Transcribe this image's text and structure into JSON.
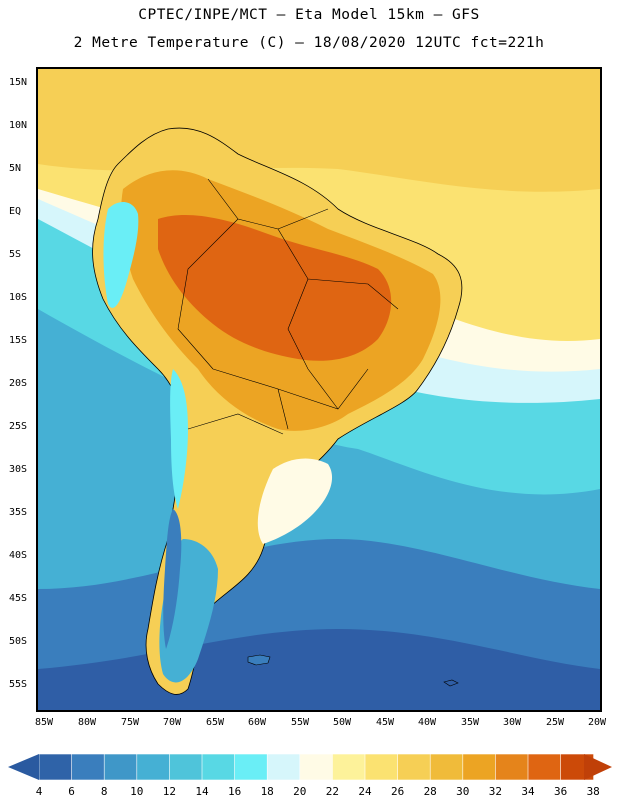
{
  "title_line1": "CPTEC/INPE/MCT –  Eta Model 15km – GFS",
  "title_line2": "2 Metre Temperature (C) – 18/08/2020 12UTC fct=221h",
  "lat_labels": [
    "15N",
    "10N",
    "5N",
    "EQ",
    "5S",
    "10S",
    "15S",
    "20S",
    "25S",
    "30S",
    "35S",
    "40S",
    "45S",
    "50S",
    "55S"
  ],
  "lon_labels": [
    "85W",
    "80W",
    "75W",
    "70W",
    "65W",
    "60W",
    "55W",
    "50W",
    "45W",
    "40W",
    "35W",
    "30W",
    "25W",
    "20W"
  ],
  "colorbar": {
    "labels": [
      "4",
      "6",
      "8",
      "10",
      "12",
      "14",
      "16",
      "18",
      "20",
      "22",
      "24",
      "26",
      "28",
      "30",
      "32",
      "34",
      "36",
      "38"
    ],
    "colors": [
      "#2f63a8",
      "#3a7ebd",
      "#3f97c8",
      "#45b0d4",
      "#4fc4da",
      "#58d8e4",
      "#6aeef6",
      "#d6f6fb",
      "#fffbe6",
      "#fdf29a",
      "#fbe271",
      "#f6cf55",
      "#f0bb3a",
      "#eca423",
      "#e5841b",
      "#df6512",
      "#cc4a08"
    ],
    "left_arrow_color": "#2a5aa0",
    "right_arrow_color": "#c04008"
  },
  "map_colors": {
    "ocean_south": "#2f5ea6",
    "ocean_mid": "#3a7ebd",
    "ocean_cool": "#45b0d4",
    "ocean_cyan": "#58d8e4",
    "pale": "#d6f6fb",
    "cream": "#fffbe6",
    "yellow": "#fbe271",
    "gold": "#f6cf55",
    "orange": "#eca423",
    "hot": "#df6512",
    "andes": "#6aeef6",
    "coast": "#000000"
  }
}
